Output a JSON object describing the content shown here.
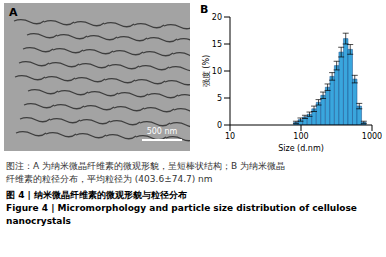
{
  "panel_a": {
    "label": "A",
    "scale_bar": "500 nm"
  },
  "panel_b": {
    "label": "B"
  },
  "chart_data": {
    "type": "histogram",
    "x_label": "Size (d.nm)",
    "y_label": "强度 (%)",
    "bins": [
      78.8,
      91.3,
      105.7,
      122.4,
      141.8,
      164.2,
      190.1,
      220.2,
      255.0,
      295.3,
      342.0,
      396.1,
      458.7,
      531.2,
      615.1,
      712.4,
      825.0
    ],
    "values": [
      0.5,
      1.0,
      1.5,
      2.0,
      3.0,
      4.2,
      5.5,
      7.0,
      9.0,
      11.0,
      13.5,
      16.0,
      14.0,
      8.5,
      3.5,
      0.5
    ],
    "errors": [
      0.2,
      0.3,
      0.3,
      0.4,
      0.5,
      0.5,
      0.6,
      0.6,
      0.7,
      0.8,
      0.9,
      1.0,
      0.9,
      0.7,
      0.5,
      0.2
    ],
    "color": "#3aa6dd",
    "log": "x",
    "xlim": [
      10,
      1000
    ],
    "xticks": [
      10,
      100,
      1000
    ],
    "ylim": [
      0,
      20
    ],
    "yticks": [
      0,
      5,
      10,
      15,
      20
    ]
  },
  "caption": {
    "note_lines": [
      "图注：A 为纳米微晶纤维素的微观形貌，呈短棒状结构；B 为纳米微晶",
      "纤维素的粒径分布，平均粒径为 (403.6±74.7) nm"
    ],
    "title_cn": "图 4 | 纳米微晶纤维素的微观形貌与粒径分布",
    "title_en_lines": [
      "Figure 4 | Micromorphology and particle size distribution of cellulose",
      "nanocrystals"
    ]
  }
}
